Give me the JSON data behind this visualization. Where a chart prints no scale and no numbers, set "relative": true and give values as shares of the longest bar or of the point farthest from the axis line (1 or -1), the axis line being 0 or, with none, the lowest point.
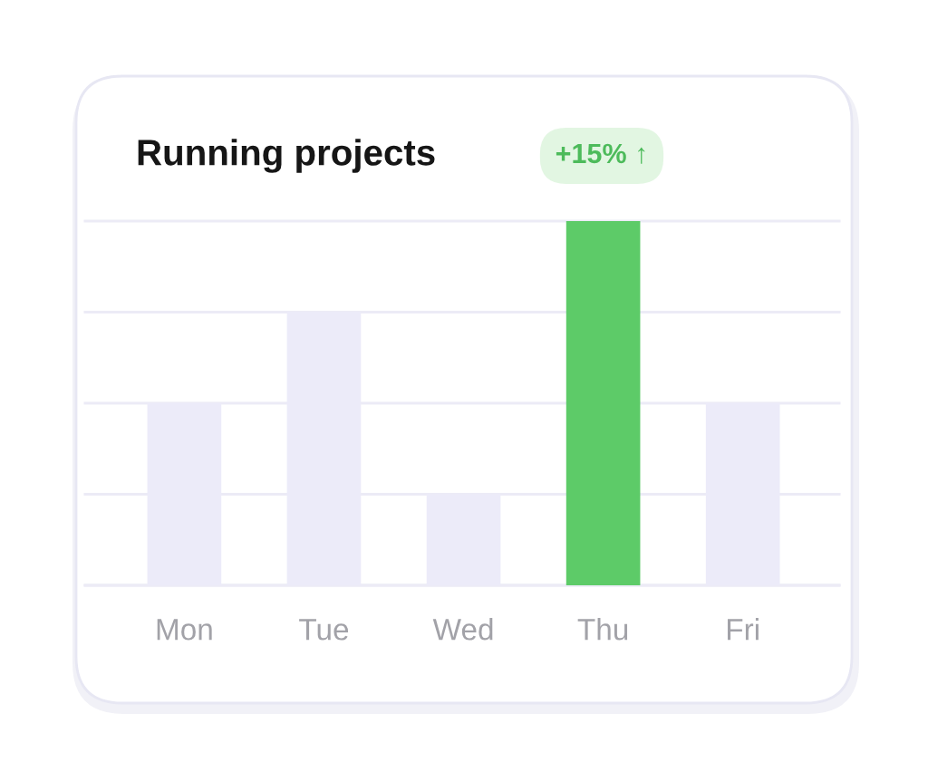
{
  "chart_data": {
    "type": "bar",
    "title": "Running projects",
    "annotations": [
      "+15% ↑"
    ],
    "categories": [
      "Mon",
      "Tue",
      "Wed",
      "Thu",
      "Fri"
    ],
    "values": [
      0.5,
      0.75,
      0.25,
      1,
      0.5
    ],
    "colors": [
      "#ecebf9",
      "#ecebf9",
      "#ecebf9",
      "#5dcb68",
      "#ecebf9"
    ],
    "relative": true,
    "grid": "y",
    "tick_labels": "x"
  }
}
